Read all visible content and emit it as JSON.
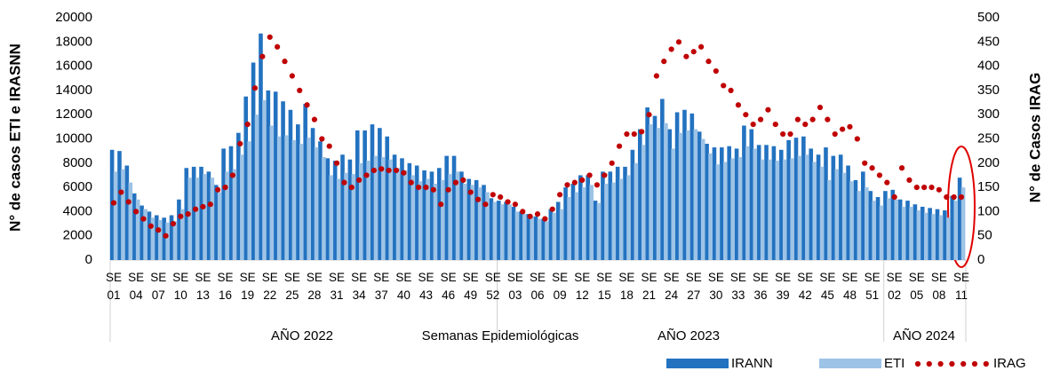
{
  "chart_data": {
    "type": "bar",
    "ylabel": "N° de casos ETI e IRASNN",
    "y2label": "N° de Casos IRAG",
    "xlabel": "Semanas Epidemiológicas",
    "x_groups": [
      "AÑO 2022",
      "AÑO 2023",
      "AÑO 2024"
    ],
    "ylim": [
      0,
      20000
    ],
    "yticks": [
      0,
      2000,
      4000,
      6000,
      8000,
      10000,
      12000,
      14000,
      16000,
      18000,
      20000
    ],
    "y2lim": [
      0,
      500
    ],
    "y2ticks": [
      0,
      50,
      100,
      150,
      200,
      250,
      300,
      350,
      400,
      450,
      500
    ],
    "grid": false,
    "legend": "bottom-right",
    "categories": [
      "SE 01",
      null,
      null,
      "SE 04",
      null,
      null,
      "SE 07",
      null,
      null,
      "SE 10",
      null,
      null,
      "SE 13",
      null,
      null,
      "SE 16",
      null,
      null,
      "SE 19",
      null,
      null,
      "SE 22",
      null,
      null,
      "SE 25",
      null,
      null,
      "SE 28",
      null,
      null,
      "SE 31",
      null,
      null,
      "SE 34",
      null,
      null,
      "SE 37",
      null,
      null,
      "SE 40",
      null,
      null,
      "SE 43",
      null,
      null,
      "SE 46",
      null,
      null,
      "SE 49",
      null,
      null,
      "SE 52",
      null,
      null,
      "SE 03",
      null,
      null,
      "SE 06",
      null,
      null,
      "SE 09",
      null,
      null,
      "SE 12",
      null,
      null,
      "SE 15",
      null,
      null,
      "SE 18",
      null,
      null,
      "SE 21",
      null,
      null,
      "SE 24",
      null,
      null,
      "SE 27",
      null,
      null,
      "SE 30",
      null,
      null,
      "SE 33",
      null,
      null,
      "SE 36",
      null,
      null,
      "SE 39",
      null,
      null,
      "SE 42",
      null,
      null,
      "SE 45",
      null,
      null,
      "SE 48",
      null,
      null,
      "SE 51",
      null,
      null,
      "SE 02",
      null,
      null,
      "SE 05",
      null,
      null,
      "SE 08",
      null,
      null,
      "SE 11"
    ],
    "series": [
      {
        "name": "IRANN",
        "type": "bar",
        "color": "#2372c0",
        "values": [
          9100,
          9000,
          7800,
          5500,
          4500,
          4000,
          3700,
          3500,
          3700,
          5000,
          7600,
          7700,
          7700,
          7300,
          6200,
          9200,
          9400,
          10500,
          13500,
          16300,
          18700,
          14000,
          13900,
          13100,
          12400,
          11200,
          12900,
          10900,
          9800,
          8400,
          8200,
          8700,
          8300,
          10700,
          10700,
          11200,
          10900,
          10200,
          8700,
          8400,
          8000,
          7800,
          7400,
          7300,
          7600,
          8600,
          8600,
          7300,
          6700,
          6600,
          6200,
          5100,
          4900,
          4800,
          4400,
          4000,
          3800,
          3600,
          3400,
          4200,
          4800,
          6000,
          6300,
          7000,
          7000,
          4900,
          7300,
          7300,
          7700,
          7700,
          9100,
          10800,
          12600,
          11900,
          13300,
          10800,
          12200,
          12400,
          12100,
          10600,
          9600,
          9300,
          9300,
          9400,
          9200,
          11100,
          10800,
          9500,
          9500,
          9400,
          9100,
          9900,
          10100,
          10200,
          9200,
          8700,
          9300,
          8600,
          8700,
          7800,
          6600,
          7300,
          5700,
          5200,
          5700,
          5800,
          5000,
          4900,
          4600,
          4400,
          4300,
          4200,
          4100,
          5300,
          6800
        ]
      },
      {
        "name": "ETI",
        "type": "bar",
        "color": "#9dc3e6",
        "values": [
          7300,
          7500,
          6400,
          5000,
          4200,
          3500,
          3300,
          3100,
          3200,
          4200,
          6800,
          6800,
          7100,
          6800,
          5600,
          7300,
          7500,
          8700,
          9800,
          12000,
          13200,
          11100,
          10200,
          10300,
          9900,
          9600,
          10100,
          9300,
          8500,
          7000,
          6700,
          7200,
          7100,
          8000,
          8200,
          8600,
          8500,
          8300,
          7600,
          7400,
          7000,
          6500,
          6700,
          6300,
          6600,
          7100,
          7300,
          6300,
          6200,
          6000,
          5600,
          4800,
          4600,
          4600,
          4000,
          3800,
          3600,
          3400,
          3200,
          3900,
          4200,
          5200,
          5600,
          6000,
          6200,
          4700,
          6300,
          6400,
          6700,
          7000,
          8000,
          9500,
          11200,
          10900,
          11300,
          9200,
          10500,
          10700,
          10800,
          10000,
          8800,
          7900,
          8100,
          8400,
          8500,
          9400,
          9200,
          8300,
          8300,
          8200,
          8300,
          8400,
          8600,
          8700,
          8100,
          7700,
          6600,
          7500,
          7200,
          6500,
          5700,
          6000,
          4900,
          4500,
          5100,
          5000,
          4400,
          4400,
          4100,
          3900,
          3800,
          3700,
          3500,
          4900,
          6000
        ]
      },
      {
        "name": "IRAG",
        "type": "line",
        "axis": "y2",
        "color": "#c00000",
        "values": [
          118,
          140,
          120,
          100,
          85,
          70,
          62,
          50,
          75,
          90,
          95,
          105,
          110,
          115,
          145,
          150,
          175,
          240,
          280,
          355,
          420,
          460,
          440,
          410,
          380,
          350,
          320,
          290,
          250,
          235,
          200,
          160,
          150,
          165,
          175,
          185,
          188,
          185,
          185,
          180,
          160,
          150,
          150,
          145,
          115,
          145,
          160,
          165,
          140,
          125,
          115,
          135,
          130,
          120,
          115,
          100,
          90,
          95,
          85,
          105,
          135,
          155,
          160,
          165,
          175,
          155,
          175,
          200,
          235,
          260,
          260,
          265,
          300,
          380,
          410,
          435,
          450,
          420,
          430,
          440,
          410,
          390,
          360,
          350,
          320,
          300,
          280,
          290,
          310,
          280,
          260,
          260,
          290,
          280,
          290,
          315,
          290,
          260,
          270,
          275,
          250,
          200,
          190,
          175,
          160,
          130,
          190,
          165,
          150,
          150,
          150,
          145,
          130,
          130,
          130
        ]
      }
    ]
  }
}
